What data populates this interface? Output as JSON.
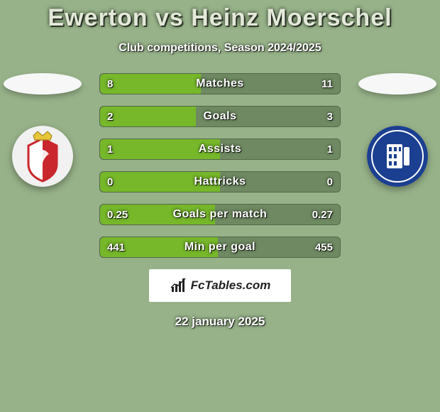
{
  "background_color": "#97b289",
  "title": {
    "text": "Ewerton vs Heinz Moerschel",
    "color": "#e3e9d8",
    "fontsize": 34
  },
  "subtitle": "Club competitions, Season 2024/2025",
  "players": {
    "left": {
      "badge_bg": "#f1f1f1",
      "badge_stripe": "#c9272d",
      "crown": "#e7c63a"
    },
    "right": {
      "badge_bg": "#1b3f91",
      "badge_inner": "#ffffff"
    }
  },
  "bars": {
    "track_color": "#6f8a62",
    "left_fill_color": "#76b82a",
    "right_fill_color": "#6f8a62",
    "border_color": "rgba(0,0,0,0.25)",
    "label_fontsize": 16,
    "value_fontsize": 15,
    "height": 30,
    "gap": 16,
    "items": [
      {
        "label": "Matches",
        "left": "8",
        "right": "11",
        "left_pct": 42
      },
      {
        "label": "Goals",
        "left": "2",
        "right": "3",
        "left_pct": 40
      },
      {
        "label": "Assists",
        "left": "1",
        "right": "1",
        "left_pct": 50
      },
      {
        "label": "Hattricks",
        "left": "0",
        "right": "0",
        "left_pct": 50
      },
      {
        "label": "Goals per match",
        "left": "0.25",
        "right": "0.27",
        "left_pct": 48
      },
      {
        "label": "Min per goal",
        "left": "441",
        "right": "455",
        "left_pct": 49
      }
    ]
  },
  "brand": "FcTables.com",
  "date": "22 january 2025"
}
